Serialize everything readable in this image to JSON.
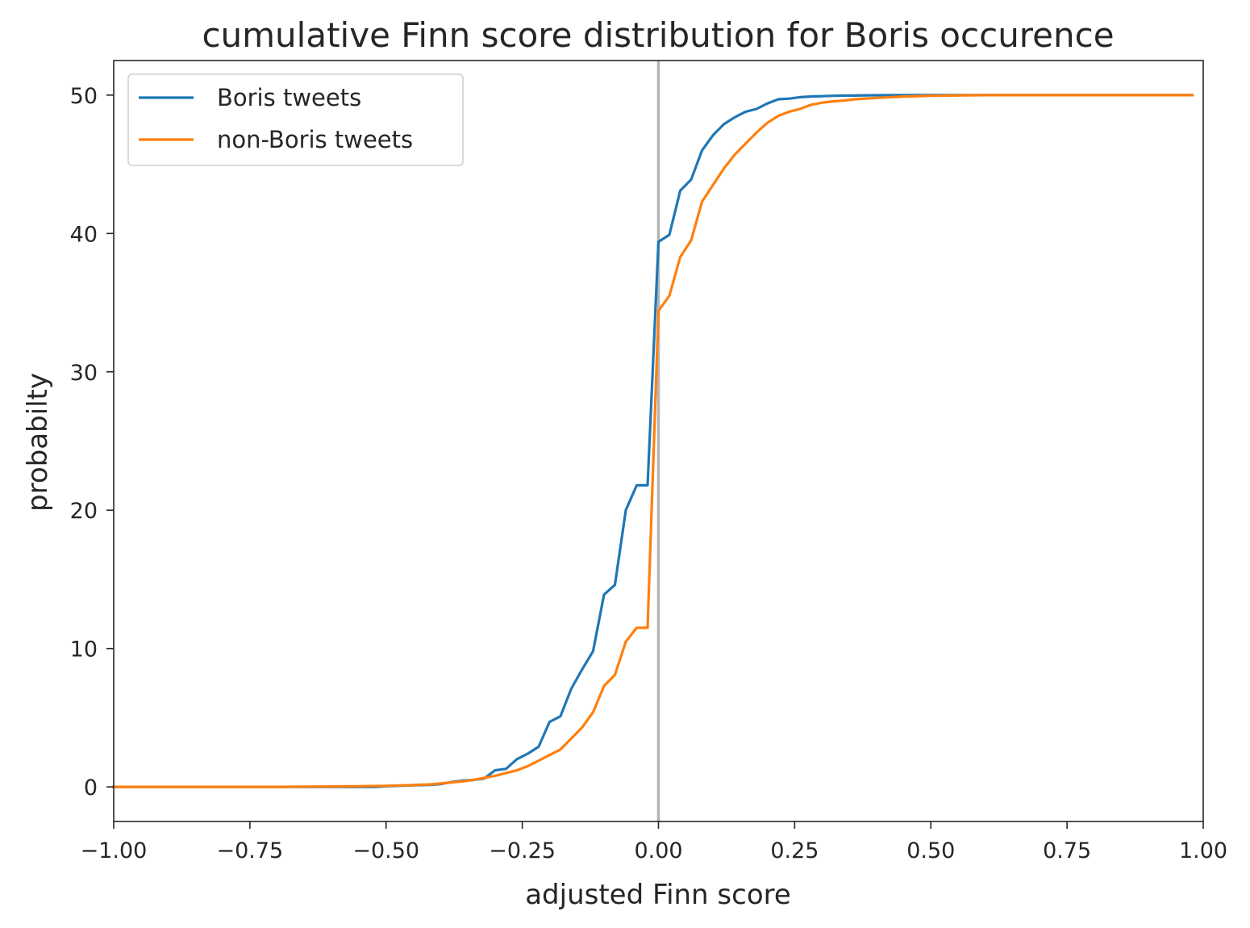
{
  "chart_data": {
    "type": "line",
    "title": "cumulative Finn score distribution for Boris occurence",
    "xlabel": "adjusted Finn score",
    "ylabel": "probabilty",
    "xlim": [
      -1.0,
      1.0
    ],
    "ylim": [
      -2.5,
      52.5
    ],
    "xticks": [
      -1.0,
      -0.75,
      -0.5,
      -0.25,
      0.0,
      0.25,
      0.5,
      0.75,
      1.0
    ],
    "xtick_labels": [
      "−1.00",
      "−0.75",
      "−0.50",
      "−0.25",
      "0.00",
      "0.25",
      "0.50",
      "0.75",
      "1.00"
    ],
    "yticks": [
      0,
      10,
      20,
      30,
      40,
      50
    ],
    "ytick_labels": [
      "0",
      "10",
      "20",
      "30",
      "40",
      "50"
    ],
    "grid": false,
    "legend_position": "top-left",
    "reference_line": {
      "x": 0.0,
      "color": "#b5b5b5"
    },
    "series": [
      {
        "name": "Boris tweets",
        "color": "#1f77b4",
        "x": [
          -1.0,
          -0.9,
          -0.8,
          -0.7,
          -0.6,
          -0.52,
          -0.5,
          -0.46,
          -0.42,
          -0.4,
          -0.38,
          -0.36,
          -0.34,
          -0.32,
          -0.3,
          -0.28,
          -0.26,
          -0.24,
          -0.22,
          -0.2,
          -0.18,
          -0.16,
          -0.14,
          -0.12,
          -0.1,
          -0.08,
          -0.06,
          -0.04,
          -0.02,
          0.0,
          0.02,
          0.04,
          0.06,
          0.08,
          0.1,
          0.12,
          0.14,
          0.16,
          0.18,
          0.2,
          0.22,
          0.24,
          0.26,
          0.28,
          0.3,
          0.32,
          0.36,
          0.4,
          0.45,
          0.5,
          0.6,
          0.7,
          0.8,
          0.9,
          0.98
        ],
        "y": [
          0,
          0,
          0,
          0,
          0,
          0,
          0.05,
          0.1,
          0.15,
          0.2,
          0.35,
          0.45,
          0.5,
          0.6,
          1.2,
          1.3,
          2.0,
          2.4,
          2.9,
          4.7,
          5.1,
          7.1,
          8.5,
          9.8,
          13.9,
          14.6,
          20.0,
          21.8,
          21.8,
          39.4,
          39.9,
          43.1,
          43.9,
          46.0,
          47.1,
          47.9,
          48.4,
          48.8,
          49.0,
          49.4,
          49.7,
          49.75,
          49.85,
          49.9,
          49.92,
          49.95,
          49.97,
          49.99,
          50.0,
          50.0,
          50.0,
          50.0,
          50.0,
          50.0,
          50.0
        ]
      },
      {
        "name": "non-Boris tweets",
        "color": "#ff7f0e",
        "x": [
          -1.0,
          -0.9,
          -0.8,
          -0.7,
          -0.6,
          -0.55,
          -0.5,
          -0.46,
          -0.42,
          -0.4,
          -0.38,
          -0.36,
          -0.34,
          -0.32,
          -0.3,
          -0.28,
          -0.26,
          -0.24,
          -0.22,
          -0.2,
          -0.18,
          -0.16,
          -0.14,
          -0.12,
          -0.1,
          -0.08,
          -0.06,
          -0.04,
          -0.02,
          0.0,
          0.02,
          0.04,
          0.06,
          0.08,
          0.1,
          0.12,
          0.14,
          0.16,
          0.18,
          0.2,
          0.22,
          0.24,
          0.26,
          0.28,
          0.3,
          0.32,
          0.34,
          0.36,
          0.4,
          0.45,
          0.5,
          0.6,
          0.7,
          0.8,
          0.9,
          0.98
        ],
        "y": [
          0,
          0,
          0,
          0,
          0.03,
          0.05,
          0.08,
          0.12,
          0.18,
          0.25,
          0.32,
          0.4,
          0.5,
          0.65,
          0.8,
          1.0,
          1.2,
          1.5,
          1.9,
          2.3,
          2.7,
          3.5,
          4.3,
          5.4,
          7.3,
          8.1,
          10.5,
          11.5,
          11.5,
          34.4,
          35.5,
          38.3,
          39.5,
          42.3,
          43.5,
          44.7,
          45.7,
          46.5,
          47.3,
          48.0,
          48.5,
          48.8,
          49.0,
          49.3,
          49.45,
          49.55,
          49.6,
          49.7,
          49.8,
          49.9,
          49.95,
          50.0,
          50.0,
          50.0,
          50.0,
          50.0
        ]
      }
    ]
  }
}
